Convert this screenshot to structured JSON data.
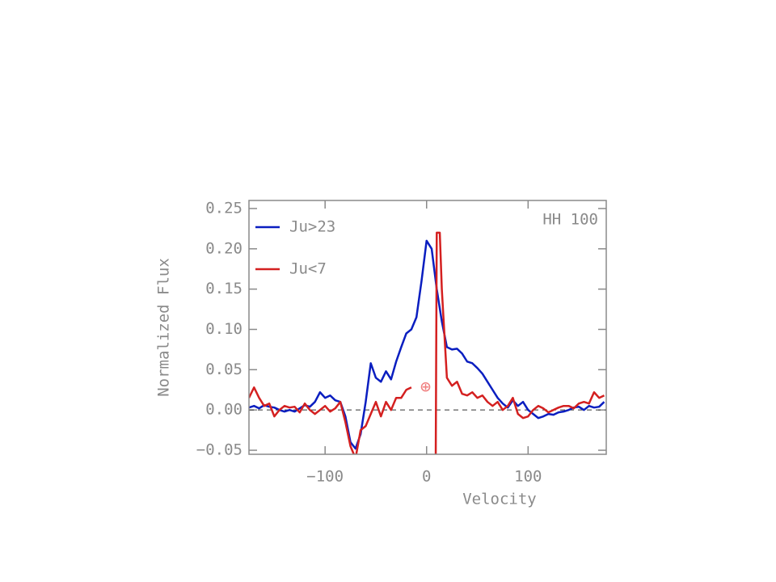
{
  "chart_data": {
    "type": "line",
    "xlabel": "Velocity",
    "ylabel": "Normalized Flux",
    "annotation": "HH 100",
    "marker_symbol": "⊕",
    "marker_x": -1,
    "marker_y": 0.028,
    "marker_color": "#f08080",
    "zero_line": true,
    "xlim": [
      -175,
      177
    ],
    "ylim": [
      -0.055,
      0.26
    ],
    "xticks": [
      {
        "value": -100,
        "label": "−100"
      },
      0,
      100
    ],
    "yticks": [
      {
        "value": -0.05,
        "label": "−0.05"
      },
      {
        "value": 0,
        "label": "0.00"
      },
      {
        "value": 0.05,
        "label": "0.05"
      },
      {
        "value": 0.1,
        "label": "0.10"
      },
      {
        "value": 0.15,
        "label": "0.15"
      },
      {
        "value": 0.2,
        "label": "0.20"
      },
      {
        "value": 0.25,
        "label": "0.25"
      }
    ],
    "series": [
      {
        "name": "Ju>23",
        "color": "#0a1ec0",
        "x": [
          -175,
          -170,
          -165,
          -160,
          -155,
          -150,
          -145,
          -140,
          -135,
          -130,
          -125,
          -120,
          -115,
          -110,
          -105,
          -100,
          -95,
          -90,
          -85,
          -80,
          -75,
          -70,
          -65,
          -60,
          -55,
          -50,
          -45,
          -40,
          -35,
          -30,
          -25,
          -20,
          -15,
          -10,
          -5,
          0,
          5,
          10,
          15,
          20,
          25,
          30,
          35,
          40,
          45,
          50,
          55,
          60,
          65,
          70,
          75,
          80,
          85,
          90,
          95,
          100,
          105,
          110,
          115,
          120,
          125,
          130,
          135,
          140,
          145,
          150,
          155,
          160,
          165,
          170,
          175
        ],
        "values": [
          0.003,
          0.005,
          0.002,
          0.006,
          0.004,
          0.003,
          0.0,
          -0.002,
          0.0,
          -0.002,
          0.002,
          0.006,
          0.004,
          0.01,
          0.022,
          0.015,
          0.018,
          0.012,
          0.01,
          -0.008,
          -0.04,
          -0.048,
          -0.03,
          0.01,
          0.058,
          0.04,
          0.035,
          0.048,
          0.038,
          0.06,
          0.078,
          0.095,
          0.1,
          0.115,
          0.16,
          0.21,
          0.2,
          0.15,
          0.11,
          0.078,
          0.075,
          0.076,
          0.07,
          0.06,
          0.058,
          0.052,
          0.045,
          0.035,
          0.025,
          0.015,
          0.008,
          0.003,
          0.012,
          0.005,
          0.01,
          0.0,
          -0.005,
          -0.01,
          -0.008,
          -0.005,
          -0.006,
          -0.003,
          -0.002,
          0.0,
          0.003,
          0.004,
          0.0,
          0.005,
          0.003,
          0.004,
          0.01
        ]
      },
      {
        "name": "Ju<7",
        "color": "#d42020",
        "x": [
          -175,
          -170,
          -165,
          -160,
          -155,
          -150,
          -145,
          -140,
          -135,
          -130,
          -125,
          -120,
          -115,
          -110,
          -105,
          -100,
          -95,
          -90,
          -85,
          -80,
          -75,
          -70,
          -65,
          -60,
          -55,
          -50,
          -45,
          -40,
          -35,
          -30,
          -25,
          -20,
          -15,
          -10,
          9,
          10,
          13,
          15,
          20,
          25,
          30,
          35,
          40,
          45,
          50,
          55,
          60,
          65,
          70,
          75,
          80,
          85,
          90,
          95,
          100,
          105,
          110,
          115,
          120,
          125,
          130,
          135,
          140,
          145,
          150,
          155,
          160,
          165,
          170,
          175
        ],
        "values": [
          0.015,
          0.028,
          0.015,
          0.005,
          0.008,
          -0.008,
          0.0,
          0.005,
          0.003,
          0.004,
          -0.003,
          0.008,
          0.0,
          -0.005,
          0.0,
          0.005,
          -0.002,
          0.002,
          0.01,
          -0.015,
          -0.045,
          -0.06,
          -0.025,
          -0.02,
          -0.005,
          0.01,
          -0.008,
          0.01,
          0.0,
          0.015,
          0.015,
          0.025,
          0.028,
          null,
          -0.06,
          0.22,
          0.22,
          0.15,
          0.04,
          0.03,
          0.035,
          0.02,
          0.018,
          0.022,
          0.015,
          0.018,
          0.01,
          0.005,
          0.01,
          0.0,
          0.005,
          0.015,
          -0.005,
          -0.01,
          -0.008,
          0.0,
          0.005,
          0.002,
          -0.003,
          0.0,
          0.003,
          0.005,
          0.005,
          0.002,
          0.008,
          0.01,
          0.008,
          0.022,
          0.015,
          0.018
        ]
      }
    ]
  }
}
